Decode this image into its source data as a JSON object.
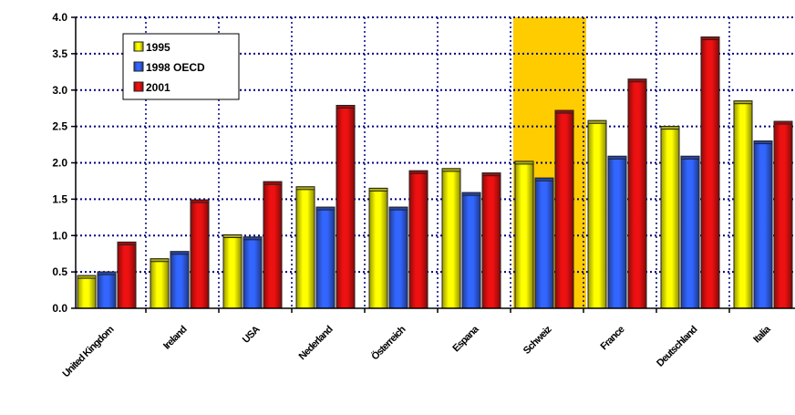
{
  "chart_data": {
    "type": "bar",
    "title": "",
    "xlabel": "",
    "ylabel": "",
    "ylim": [
      0,
      4
    ],
    "yticks": [
      "0.0",
      "0.5",
      "1.0",
      "1.5",
      "2.0",
      "2.5",
      "3.0",
      "3.5",
      "4.0"
    ],
    "categories": [
      "United Kingdom",
      "Ireland",
      "USA",
      "Nederland",
      "Österreich",
      "Espana",
      "Schweiz",
      "France",
      "Deutschland",
      "Italia"
    ],
    "highlight_category": "Schweiz",
    "highlight_color": "#FFCC00",
    "series": [
      {
        "name": "1995",
        "color": "#FFFF00",
        "values": [
          0.45,
          0.68,
          1.01,
          1.67,
          1.65,
          1.92,
          2.02,
          2.58,
          2.5,
          2.85
        ]
      },
      {
        "name": "1998 OECD",
        "color": "#3366FF",
        "values": [
          0.5,
          0.78,
          0.98,
          1.39,
          1.39,
          1.59,
          1.79,
          2.09,
          2.09,
          2.3
        ]
      },
      {
        "name": "2001",
        "color": "#EE1111",
        "values": [
          0.91,
          1.49,
          1.74,
          2.79,
          1.89,
          1.86,
          2.72,
          3.15,
          3.73,
          2.57
        ]
      }
    ],
    "grid": "dotted",
    "legend_position": "top-left"
  }
}
